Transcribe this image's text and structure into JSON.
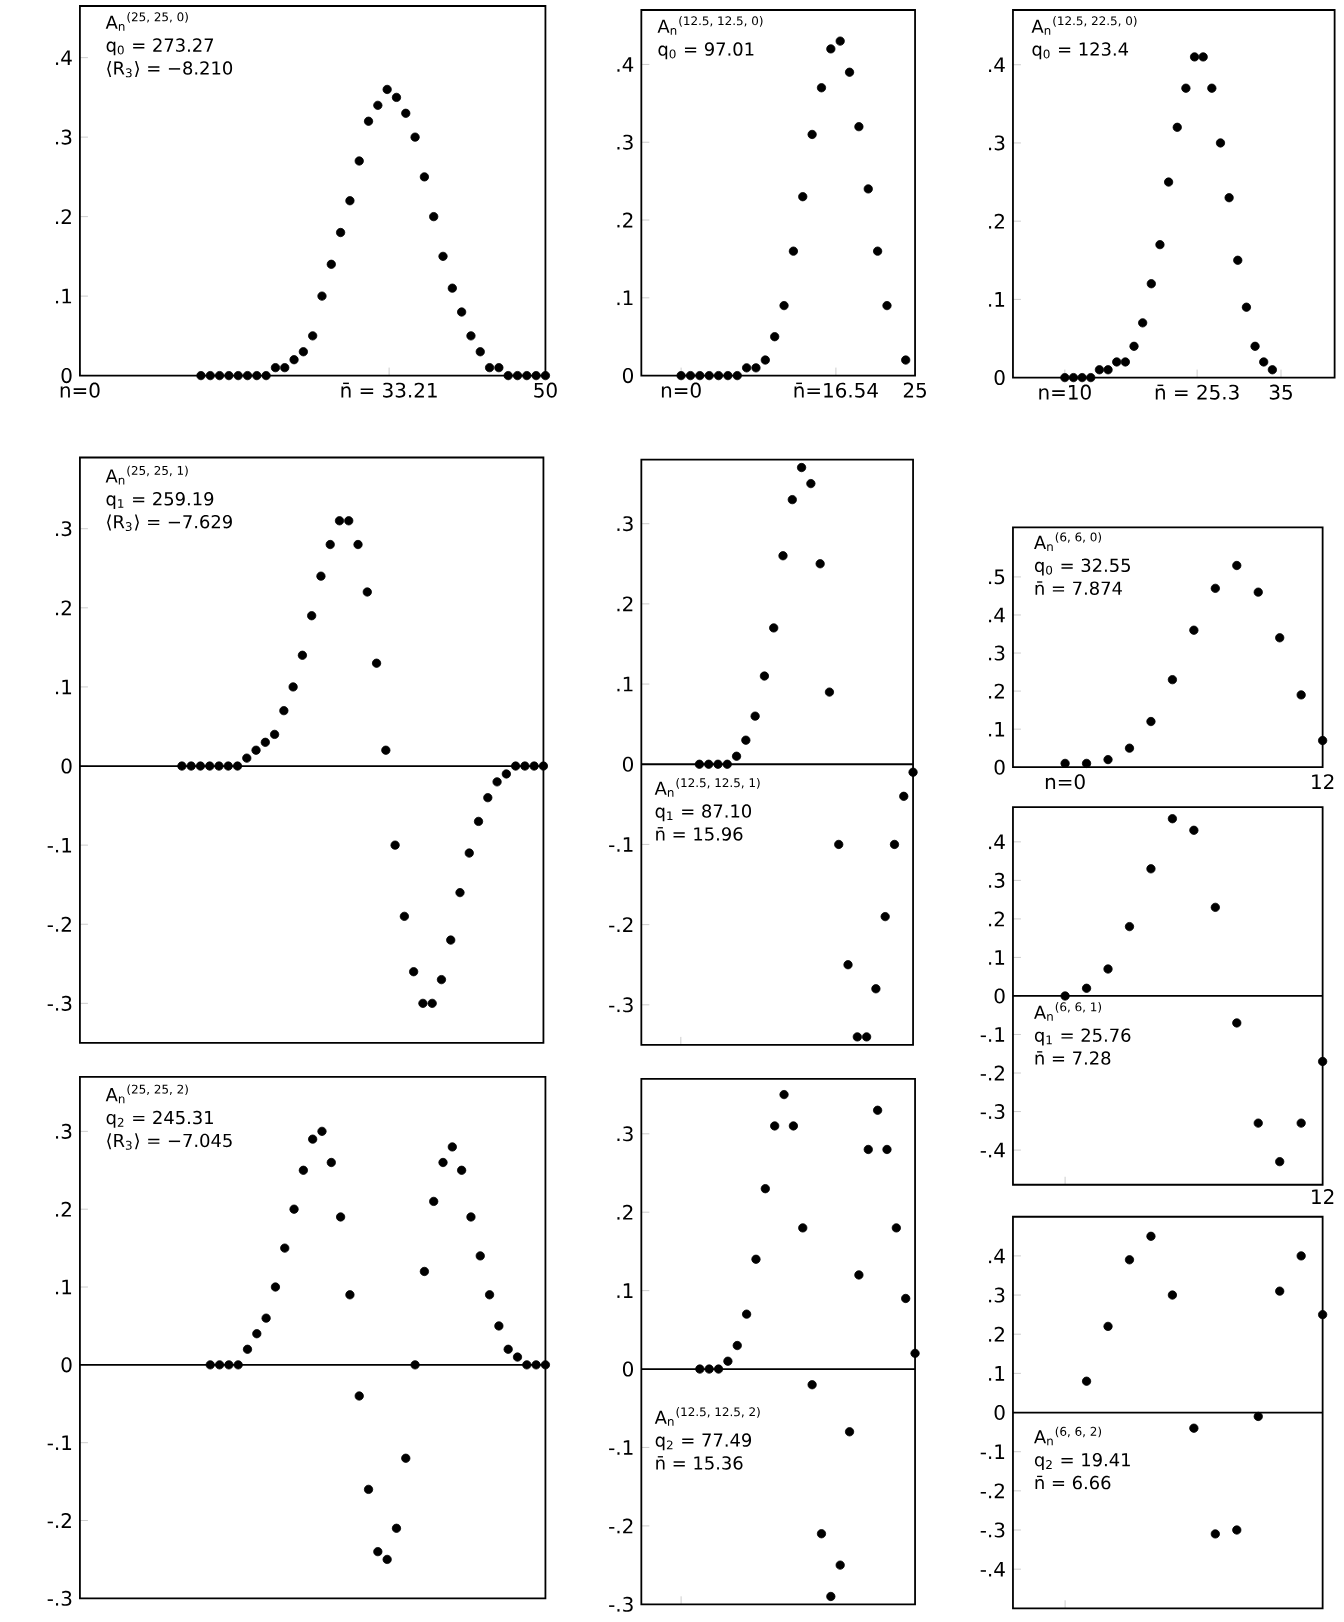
{
  "chart_data": [
    {
      "type": "scatter",
      "color": "#000000",
      "xlim": [
        0,
        50
      ],
      "ylim": [
        0,
        0.465
      ],
      "xticks": [
        {
          "value": 0,
          "label": "n=0"
        },
        {
          "value": 33.21,
          "label": "n̄ = 33.21"
        },
        50
      ],
      "yticks": [
        0,
        {
          "value": 0.1,
          "label": ".1"
        },
        {
          "value": 0.2,
          "label": ".2"
        },
        {
          "value": 0.3,
          "label": ".3"
        },
        {
          "value": 0.4,
          "label": ".4"
        }
      ],
      "annotations": [
        "A$_{n}$$^{(25, 25, 0)}$",
        "q$_{0}$ = 273.27",
        "⟨R$_{3}$⟩ = −8.210"
      ],
      "x": [
        13,
        14,
        15,
        16,
        17,
        18,
        19,
        20,
        21,
        22,
        23,
        24,
        25,
        26,
        27,
        28,
        29,
        30,
        31,
        32,
        33,
        34,
        35,
        36,
        37,
        38,
        39,
        40,
        41,
        42,
        43,
        44,
        45,
        46,
        47,
        48,
        49,
        50
      ],
      "values": [
        0,
        0,
        0,
        0,
        0,
        0,
        0,
        0,
        0.01,
        0.01,
        0.02,
        0.03,
        0.05,
        0.1,
        0.14,
        0.18,
        0.22,
        0.27,
        0.32,
        0.34,
        0.36,
        0.35,
        0.33,
        0.3,
        0.25,
        0.2,
        0.15,
        0.11,
        0.08,
        0.05,
        0.03,
        0.01,
        0.01,
        0,
        0,
        0,
        0,
        0
      ]
    },
    {
      "type": "scatter",
      "color": "#000000",
      "xlim": [
        -4.25,
        25
      ],
      "ylim": [
        0,
        0.47
      ],
      "xticks": [
        {
          "value": 0,
          "label": "n=0"
        },
        {
          "value": 16.54,
          "label": "n̄=16.54"
        },
        25
      ],
      "yticks": [
        0,
        {
          "value": 0.1,
          "label": ".1"
        },
        {
          "value": 0.2,
          "label": ".2"
        },
        {
          "value": 0.3,
          "label": ".3"
        },
        {
          "value": 0.4,
          "label": ".4"
        }
      ],
      "annotations": [
        "A$_{n}$$^{(12.5, 12.5, 0)}$",
        "q$_{0}$ = 97.01"
      ],
      "x": [
        0,
        1,
        2,
        3,
        4,
        5,
        6,
        7,
        8,
        9,
        10,
        11,
        12,
        13,
        14,
        15,
        16,
        17,
        18,
        19,
        20,
        21,
        22,
        24
      ],
      "values": [
        0,
        0,
        0,
        0,
        0,
        0,
        0,
        0.01,
        0.01,
        0.02,
        0.05,
        0.09,
        0.16,
        0.23,
        0.31,
        0.37,
        0.42,
        0.43,
        0.39,
        0.32,
        0.24,
        0.16,
        0.09,
        0.02
      ]
    },
    {
      "type": "scatter",
      "color": "#000000",
      "xlim": [
        4,
        41.2
      ],
      "ylim": [
        0,
        0.47
      ],
      "xticks": [
        {
          "value": 10,
          "label": "n=10"
        },
        {
          "value": 25.3,
          "label": "n̄ = 25.3"
        },
        35
      ],
      "yticks": [
        0,
        {
          "value": 0.1,
          "label": ".1"
        },
        {
          "value": 0.2,
          "label": ".2"
        },
        {
          "value": 0.3,
          "label": ".3"
        },
        {
          "value": 0.4,
          "label": ".4"
        }
      ],
      "annotations": [
        "A$_{n}$$^{(12.5, 22.5, 0)}$",
        "q$_{0}$ = 123.4"
      ],
      "x": [
        10,
        11,
        12,
        13,
        14,
        15,
        16,
        17,
        18,
        19,
        20,
        21,
        22,
        23,
        24,
        25,
        26,
        27,
        28,
        29,
        30,
        31,
        32,
        33,
        34
      ],
      "values": [
        0,
        0,
        0,
        0,
        0.01,
        0.01,
        0.02,
        0.02,
        0.04,
        0.07,
        0.12,
        0.17,
        0.25,
        0.32,
        0.37,
        0.41,
        0.41,
        0.37,
        0.3,
        0.23,
        0.15,
        0.09,
        0.04,
        0.02,
        0.01
      ]
    },
    {
      "type": "scatter",
      "color": "#000000",
      "xlim": [
        0,
        50
      ],
      "ylim": [
        -0.35,
        0.39
      ],
      "tick_labels": "y",
      "yticks": [
        {
          "value": -0.3,
          "label": "-.3"
        },
        {
          "value": -0.2,
          "label": "-.2"
        },
        {
          "value": -0.1,
          "label": "-.1"
        },
        0,
        {
          "value": 0.1,
          "label": ".1"
        },
        {
          "value": 0.2,
          "label": ".2"
        },
        {
          "value": 0.3,
          "label": ".3"
        }
      ],
      "ref_lines": [
        {
          "axis": "y",
          "value": 0
        }
      ],
      "annotations": [
        "A$_{n}$$^{(25, 25, 1)}$",
        "q$_{1}$ = 259.19",
        "⟨R$_{3}$⟩ = −7.629"
      ],
      "x": [
        11,
        12,
        13,
        14,
        15,
        16,
        17,
        18,
        19,
        20,
        21,
        22,
        23,
        24,
        25,
        26,
        27,
        28,
        29,
        30,
        31,
        32,
        33,
        34,
        35,
        36,
        37,
        38,
        39,
        40,
        41,
        42,
        43,
        44,
        45,
        46,
        47,
        48,
        49,
        50
      ],
      "values": [
        0,
        0,
        0,
        0,
        0,
        0,
        0,
        0.01,
        0.02,
        0.03,
        0.04,
        0.07,
        0.1,
        0.14,
        0.19,
        0.24,
        0.28,
        0.31,
        0.31,
        0.28,
        0.22,
        0.13,
        0.02,
        -0.1,
        -0.19,
        -0.26,
        -0.3,
        -0.3,
        -0.27,
        -0.22,
        -0.16,
        -0.11,
        -0.07,
        -0.04,
        -0.02,
        -0.01,
        0,
        0,
        0,
        0
      ]
    },
    {
      "type": "scatter",
      "color": "#000000",
      "xlim": [
        -4.25,
        25
      ],
      "ylim": [
        -0.35,
        0.38
      ],
      "tick_labels": "y",
      "xticks": [
        {
          "value": 0,
          "label": null
        }
      ],
      "yticks": [
        {
          "value": -0.3,
          "label": "-.3"
        },
        {
          "value": -0.2,
          "label": "-.2"
        },
        {
          "value": -0.1,
          "label": "-.1"
        },
        0,
        {
          "value": 0.1,
          "label": ".1"
        },
        {
          "value": 0.2,
          "label": ".2"
        },
        {
          "value": 0.3,
          "label": ".3"
        }
      ],
      "ref_lines": [
        {
          "axis": "y",
          "value": 0
        }
      ],
      "annotations": [
        "A$_{n}$$^{(12.5, 12.5, 1)}$",
        "q$_{1}$ = 87.10",
        "n̄ = 15.96"
      ],
      "x": [
        2,
        3,
        4,
        5,
        6,
        7,
        8,
        9,
        10,
        11,
        12,
        13,
        14,
        15,
        16,
        17,
        18,
        19,
        20,
        21,
        22,
        23,
        24,
        25
      ],
      "values": [
        0,
        0,
        0,
        0,
        0.01,
        0.03,
        0.06,
        0.11,
        0.17,
        0.26,
        0.33,
        0.37,
        0.35,
        0.25,
        0.09,
        -0.1,
        -0.25,
        -0.34,
        -0.34,
        -0.28,
        -0.19,
        -0.1,
        -0.04,
        -0.01
      ]
    },
    {
      "type": "scatter",
      "color": "#000000",
      "xlim": [
        0,
        50
      ],
      "ylim": [
        -0.3,
        0.37
      ],
      "tick_labels": "y",
      "yticks": [
        {
          "value": -0.3,
          "label": "-.3"
        },
        {
          "value": -0.2,
          "label": "-.2"
        },
        {
          "value": -0.1,
          "label": "-.1"
        },
        0,
        {
          "value": 0.1,
          "label": ".1"
        },
        {
          "value": 0.2,
          "label": ".2"
        },
        {
          "value": 0.3,
          "label": ".3"
        }
      ],
      "ref_lines": [
        {
          "axis": "y",
          "value": 0
        }
      ],
      "annotations": [
        "A$_{n}$$^{(25, 25, 2)}$",
        "q$_{2}$ = 245.31",
        "⟨R$_{3}$⟩ = −7.045"
      ],
      "x": [
        14,
        15,
        16,
        17,
        18,
        19,
        20,
        21,
        22,
        23,
        24,
        25,
        26,
        27,
        28,
        29,
        30,
        31,
        32,
        33,
        34,
        35,
        36,
        37,
        38,
        39,
        40,
        41,
        42,
        43,
        44,
        45,
        46,
        47,
        48,
        49,
        50
      ],
      "values": [
        0,
        0,
        0,
        0,
        0.02,
        0.04,
        0.06,
        0.1,
        0.15,
        0.2,
        0.25,
        0.29,
        0.3,
        0.26,
        0.19,
        0.09,
        -0.04,
        -0.16,
        -0.24,
        -0.25,
        -0.21,
        -0.12,
        0,
        0.12,
        0.21,
        0.26,
        0.28,
        0.25,
        0.19,
        0.14,
        0.09,
        0.05,
        0.02,
        0.01,
        0,
        0,
        0
      ]
    },
    {
      "type": "scatter",
      "color": "#000000",
      "xlim": [
        -4.25,
        25
      ],
      "ylim": [
        -0.3,
        0.37
      ],
      "tick_labels": "y",
      "xticks": [
        {
          "value": 0,
          "label": null
        }
      ],
      "yticks": [
        {
          "value": -0.3,
          "label": "-.3"
        },
        {
          "value": -0.2,
          "label": "-.2"
        },
        {
          "value": -0.1,
          "label": "-.1"
        },
        0,
        {
          "value": 0.1,
          "label": ".1"
        },
        {
          "value": 0.2,
          "label": ".2"
        },
        {
          "value": 0.3,
          "label": ".3"
        }
      ],
      "ref_lines": [
        {
          "axis": "y",
          "value": 0
        }
      ],
      "annotations": [
        "A$_{n}$$^{(12.5, 12.5, 2)}$",
        "q$_{2}$ = 77.49",
        "n̄ = 15.36"
      ],
      "x": [
        2,
        3,
        4,
        5,
        6,
        7,
        8,
        9,
        10,
        11,
        12,
        13,
        14,
        15,
        16,
        17,
        18,
        19,
        20,
        21,
        22,
        23,
        24,
        25
      ],
      "values": [
        0,
        0,
        0,
        0.01,
        0.03,
        0.07,
        0.14,
        0.23,
        0.31,
        0.35,
        0.31,
        0.18,
        -0.02,
        -0.21,
        -0.29,
        -0.25,
        -0.08,
        0.12,
        0.28,
        0.33,
        0.28,
        0.18,
        0.09,
        0.02
      ]
    },
    {
      "type": "scatter",
      "color": "#000000",
      "xlim": [
        -2.43,
        12
      ],
      "ylim": [
        0,
        0.63
      ],
      "xticks": [
        {
          "value": 0,
          "label": "n=0"
        },
        12
      ],
      "yticks": [
        0,
        {
          "value": 0.1,
          "label": ".1"
        },
        {
          "value": 0.2,
          "label": ".2"
        },
        {
          "value": 0.3,
          "label": ".3"
        },
        {
          "value": 0.4,
          "label": ".4"
        },
        {
          "value": 0.5,
          "label": ".5"
        }
      ],
      "annotations": [
        "A$_{n}$$^{(6, 6, 0)}$",
        "q$_{0}$ = 32.55",
        "n̄ = 7.874"
      ],
      "x": [
        0,
        1,
        2,
        3,
        4,
        5,
        6,
        7,
        8,
        9,
        10,
        11,
        12
      ],
      "values": [
        0.01,
        0.01,
        0.02,
        0.05,
        0.12,
        0.23,
        0.36,
        0.47,
        0.53,
        0.46,
        0.34,
        0.19,
        0.07
      ]
    },
    {
      "type": "scatter",
      "color": "#000000",
      "xlim": [
        -2.43,
        12
      ],
      "ylim": [
        -0.49,
        0.49
      ],
      "xticks": [
        {
          "value": 0,
          "label": null
        },
        {
          "value": 12,
          "label": null
        }
      ],
      "tick_labels": "y",
      "yticks": [
        {
          "value": -0.4,
          "label": "-.4"
        },
        {
          "value": -0.3,
          "label": "-.3"
        },
        {
          "value": -0.2,
          "label": "-.2"
        },
        {
          "value": -0.1,
          "label": "-.1"
        },
        0,
        {
          "value": 0.1,
          "label": ".1"
        },
        {
          "value": 0.2,
          "label": ".2"
        },
        {
          "value": 0.3,
          "label": ".3"
        },
        {
          "value": 0.4,
          "label": ".4"
        }
      ],
      "ref_lines": [
        {
          "axis": "y",
          "value": 0
        }
      ],
      "annotations": [
        "A$_{n}$$^{(6, 6, 1)}$",
        "q$_{1}$ = 25.76",
        "n̄ = 7.28",
        "12"
      ],
      "x": [
        0,
        1,
        2,
        3,
        4,
        5,
        6,
        7,
        8,
        9,
        10,
        11,
        12
      ],
      "values": [
        0,
        0.02,
        0.07,
        0.18,
        0.33,
        0.46,
        0.43,
        0.23,
        -0.07,
        -0.33,
        -0.43,
        -0.33,
        -0.17
      ]
    },
    {
      "type": "scatter",
      "color": "#000000",
      "xlim": [
        -2.43,
        12
      ],
      "ylim": [
        -0.5,
        0.5
      ],
      "tick_labels": "y",
      "xticks": [
        {
          "value": 0,
          "label": null
        }
      ],
      "yticks": [
        {
          "value": -0.4,
          "label": "-.4"
        },
        {
          "value": -0.3,
          "label": "-.3"
        },
        {
          "value": -0.2,
          "label": "-.2"
        },
        {
          "value": -0.1,
          "label": "-.1"
        },
        0,
        {
          "value": 0.1,
          "label": ".1"
        },
        {
          "value": 0.2,
          "label": ".2"
        },
        {
          "value": 0.3,
          "label": ".3"
        },
        {
          "value": 0.4,
          "label": ".4"
        }
      ],
      "ref_lines": [
        {
          "axis": "y",
          "value": 0
        }
      ],
      "annotations": [
        "A$_{n}$$^{(6, 6, 2)}$",
        "q$_{2}$ = 19.41",
        "n̄ = 6.66"
      ],
      "x": [
        1,
        2,
        3,
        4,
        5,
        6,
        7,
        8,
        9,
        10,
        11,
        12
      ],
      "values": [
        0.08,
        0.22,
        0.39,
        0.45,
        0.3,
        -0.04,
        -0.31,
        -0.3,
        -0.01,
        0.31,
        0.4,
        0.25
      ]
    }
  ]
}
